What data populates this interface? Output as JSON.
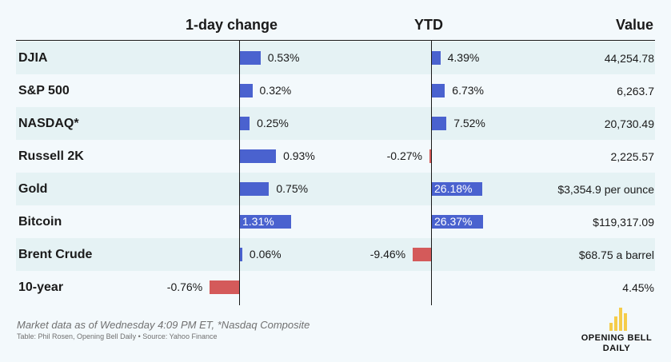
{
  "headers": {
    "one_day": "1-day change",
    "ytd": "YTD",
    "value": "Value"
  },
  "chart_data": {
    "type": "table",
    "rows": [
      {
        "name": "DJIA",
        "one_day": 0.53,
        "one_day_label": "0.53%",
        "ytd": 4.39,
        "ytd_label": "4.39%",
        "value": "44,254.78"
      },
      {
        "name": "S&P 500",
        "one_day": 0.32,
        "one_day_label": "0.32%",
        "ytd": 6.73,
        "ytd_label": "6.73%",
        "value": "6,263.7"
      },
      {
        "name": "NASDAQ*",
        "one_day": 0.25,
        "one_day_label": "0.25%",
        "ytd": 7.52,
        "ytd_label": "7.52%",
        "value": "20,730.49"
      },
      {
        "name": "Russell 2K",
        "one_day": 0.93,
        "one_day_label": "0.93%",
        "ytd": -0.27,
        "ytd_label": "-0.27%",
        "value": "2,225.57"
      },
      {
        "name": "Gold",
        "one_day": 0.75,
        "one_day_label": "0.75%",
        "ytd": 26.18,
        "ytd_label": "26.18%",
        "value": "$3,354.9 per ounce"
      },
      {
        "name": "Bitcoin",
        "one_day": 1.31,
        "one_day_label": "1.31%",
        "ytd": 26.37,
        "ytd_label": "26.37%",
        "value": "$119,317.09"
      },
      {
        "name": "Brent Crude",
        "one_day": 0.06,
        "one_day_label": "0.06%",
        "ytd": -9.46,
        "ytd_label": "-9.46%",
        "value": "$68.75 a barrel"
      },
      {
        "name": "10-year",
        "one_day": -0.76,
        "one_day_label": "-0.76%",
        "ytd": null,
        "ytd_label": "",
        "value": "4.45%"
      }
    ],
    "colors": {
      "positive": "#4a62cf",
      "negative": "#d45a5a"
    }
  },
  "footer": {
    "note": "Market data as of Wednesday 4:09 PM ET, *Nasdaq Composite",
    "source": "Table: Phil Rosen, Opening Bell Daily • Source: Yahoo Finance"
  },
  "logo": {
    "line1": "OPENING BELL",
    "line2": "DAILY"
  }
}
